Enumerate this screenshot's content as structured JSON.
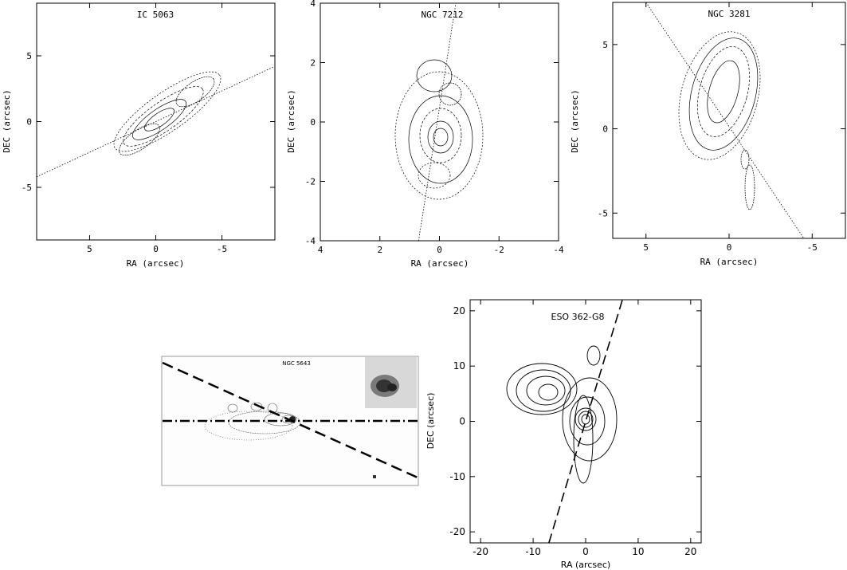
{
  "chart_data": [
    {
      "type": "scatter",
      "title": "IC 5063",
      "xlabel": "RA (arcsec)",
      "ylabel": "DEC (arcsec)",
      "xlim": [
        9,
        -9
      ],
      "ylim": [
        -9,
        9
      ],
      "xticks": [
        "5",
        "0",
        "-5"
      ],
      "yticks": [
        "5",
        "0",
        "-5"
      ],
      "axis_line": {
        "x": [
          9,
          -9
        ],
        "y": [
          -4.2,
          4.2
        ],
        "style": "dotted"
      },
      "emission_shape": "elongated contours along position angle"
    },
    {
      "type": "scatter",
      "title": "NGC 7212",
      "xlabel": "RA (arcsec)",
      "ylabel": "DEC (arcsec)",
      "xlim": [
        4,
        -4
      ],
      "ylim": [
        -4,
        4
      ],
      "xticks": [
        "4",
        "2",
        "0",
        "-2",
        "-4"
      ],
      "yticks": [
        "4",
        "2",
        "0",
        "-2",
        "-4"
      ],
      "axis_line": {
        "x": [
          0.7,
          -0.55
        ],
        "y": [
          -4,
          4
        ],
        "style": "dotted"
      },
      "emission_shape": "nested contours around nucleus"
    },
    {
      "type": "scatter",
      "title": "NGC 3281",
      "xlabel": "RA (arcsec)",
      "ylabel": "DEC (arcsec)",
      "xlim": [
        7,
        -7
      ],
      "ylim": [
        -6.5,
        7.5
      ],
      "xticks": [
        "5",
        "0",
        "-5"
      ],
      "yticks": [
        "5",
        "0",
        "-5"
      ],
      "axis_line": {
        "x": [
          5,
          -4.5
        ],
        "y": [
          9,
          -6.5
        ],
        "style": "dotted"
      },
      "emission_shape": "cone-shaped contours north-east of nucleus"
    },
    {
      "type": "image",
      "title": "NGC 5643",
      "xlabel": "",
      "ylabel": "",
      "dashed_line": "bicone axis",
      "dashdot_line": "horizontal reference axis",
      "inset": "grayscale nucleus image"
    },
    {
      "type": "scatter",
      "title": "ESO 362-G8",
      "xlabel": "RA (arcsec)",
      "ylabel": "DEC (arcsec)",
      "xlim": [
        -22,
        22
      ],
      "ylim": [
        -22,
        22
      ],
      "xticks": [
        "-20",
        "-10",
        "0",
        "10",
        "20"
      ],
      "yticks": [
        "20",
        "10",
        "0",
        "-10",
        "-20"
      ],
      "axis_line": {
        "x": [
          -7,
          7
        ],
        "y": [
          -22,
          22
        ],
        "style": "dashed"
      },
      "emission_shape": "nucleus with knot to the north-east"
    }
  ]
}
